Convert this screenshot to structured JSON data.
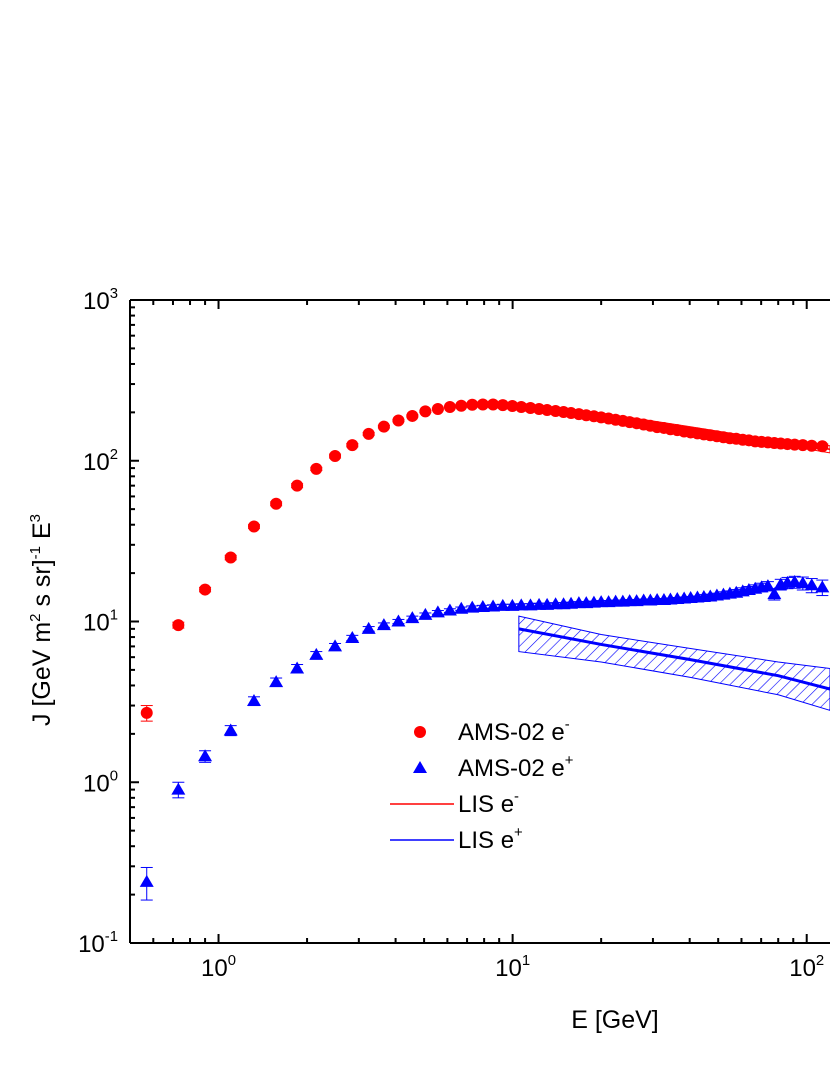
{
  "chart_data": {
    "type": "scatter",
    "xlabel": "E [GeV]",
    "ylabel": {
      "parts": [
        "J [GeV m",
        "2",
        " s sr]",
        "-1",
        " E",
        "3"
      ]
    },
    "x_scale": "log",
    "y_scale": "log",
    "xlim": [
      0.5,
      120
    ],
    "ylim": [
      0.1,
      1000
    ],
    "x_ticks": [
      {
        "value": 1,
        "base": "10",
        "exp": "0"
      },
      {
        "value": 10,
        "base": "10",
        "exp": "1"
      },
      {
        "value": 100,
        "base": "10",
        "exp": "2"
      }
    ],
    "y_ticks": [
      {
        "value": 0.1,
        "base": "10",
        "exp": "-1"
      },
      {
        "value": 1,
        "base": "10",
        "exp": "0"
      },
      {
        "value": 10,
        "base": "10",
        "exp": "1"
      },
      {
        "value": 100,
        "base": "10",
        "exp": "2"
      },
      {
        "value": 1000,
        "base": "10",
        "exp": "3"
      }
    ],
    "grid": false,
    "legend_position": "lower-center",
    "series": [
      {
        "name": "AMS-02 e",
        "name_sup": "-",
        "kind": "points",
        "marker": "circle",
        "color": "#ff0000",
        "x": [
          0.57,
          0.73,
          0.9,
          1.1,
          1.32,
          1.57,
          1.85,
          2.15,
          2.49,
          2.85,
          3.24,
          3.65,
          4.09,
          4.56,
          5.05,
          5.57,
          6.12,
          6.69,
          7.29,
          7.92,
          8.58,
          9.26,
          9.98,
          10.7,
          11.5,
          12.3,
          13.1,
          14.0,
          14.9,
          15.8,
          16.8,
          17.8,
          18.9,
          20.0,
          21.2,
          22.4,
          23.7,
          25.0,
          26.4,
          27.9,
          29.4,
          31.0,
          32.7,
          34.4,
          36.3,
          38.3,
          40.3,
          42.5,
          44.7,
          47.0,
          49.5,
          52.1,
          54.8,
          57.6,
          60.6,
          63.6,
          66.8,
          70.2,
          73.8,
          77.6,
          81.6,
          86.0,
          91.0,
          97.0,
          104,
          113
        ],
        "y": [
          2.7,
          9.5,
          15.8,
          25.0,
          39.0,
          54.0,
          70.0,
          89.0,
          107,
          125,
          147,
          163,
          178,
          190,
          203,
          210,
          216,
          220,
          223,
          224,
          224,
          222,
          219,
          216,
          213,
          210,
          207,
          204,
          201,
          198,
          195,
          192,
          189,
          186,
          183,
          180,
          177,
          174,
          171,
          168,
          165,
          162,
          160,
          157,
          155,
          152,
          150,
          148,
          146,
          144,
          142,
          140,
          138,
          137,
          135,
          134,
          132,
          131,
          130,
          129,
          128,
          127,
          126,
          125,
          124,
          123
        ],
        "err": [
          0.3,
          0.4,
          0.5,
          0.8,
          1.0,
          1.5,
          2,
          2,
          3,
          3,
          3,
          3,
          3,
          3,
          3,
          3,
          3,
          3,
          3,
          3,
          3,
          3,
          3,
          3,
          3,
          3,
          3,
          3,
          3,
          3,
          3,
          3,
          3,
          3,
          3,
          3,
          3,
          3,
          3,
          3,
          3,
          3,
          3,
          3,
          3,
          3,
          3,
          3,
          3,
          3,
          3,
          3,
          3,
          3,
          3,
          3,
          3,
          3,
          3,
          3,
          3,
          3,
          4,
          4,
          4,
          4
        ]
      },
      {
        "name": "AMS-02 e",
        "name_sup": "+",
        "kind": "points",
        "marker": "triangle",
        "color": "#0000ff",
        "x": [
          0.57,
          0.73,
          0.9,
          1.1,
          1.32,
          1.57,
          1.85,
          2.15,
          2.49,
          2.85,
          3.24,
          3.65,
          4.09,
          4.56,
          5.05,
          5.57,
          6.12,
          6.69,
          7.29,
          7.92,
          8.58,
          9.26,
          9.98,
          10.7,
          11.5,
          12.3,
          13.1,
          14.0,
          14.9,
          15.8,
          16.8,
          17.8,
          18.9,
          20.0,
          21.2,
          22.4,
          23.7,
          25.0,
          26.4,
          27.9,
          29.4,
          31.0,
          32.7,
          34.4,
          36.3,
          38.3,
          40.3,
          42.5,
          44.7,
          47.0,
          49.5,
          52.1,
          54.8,
          57.6,
          60.6,
          63.6,
          66.8,
          70.2,
          73.8,
          77.6,
          81.6,
          86.0,
          91.0,
          97.0,
          104,
          113
        ],
        "y": [
          0.24,
          0.9,
          1.45,
          2.1,
          3.2,
          4.2,
          5.1,
          6.2,
          7.0,
          7.9,
          9.0,
          9.5,
          10.0,
          10.5,
          11.0,
          11.4,
          11.7,
          12.0,
          12.2,
          12.3,
          12.4,
          12.5,
          12.5,
          12.6,
          12.6,
          12.7,
          12.7,
          12.8,
          12.8,
          12.9,
          13.0,
          13.0,
          13.1,
          13.2,
          13.2,
          13.3,
          13.3,
          13.4,
          13.4,
          13.5,
          13.5,
          13.6,
          13.6,
          13.7,
          13.8,
          13.9,
          14.0,
          14.1,
          14.2,
          14.3,
          14.5,
          14.7,
          14.9,
          15.1,
          15.4,
          15.7,
          16.0,
          16.3,
          16.6,
          14.8,
          17.0,
          17.4,
          17.6,
          17.3,
          16.8,
          16.3
        ],
        "err": [
          0.055,
          0.1,
          0.12,
          0.15,
          0.2,
          0.25,
          0.3,
          0.3,
          0.3,
          0.3,
          0.3,
          0.3,
          0.3,
          0.3,
          0.3,
          0.3,
          0.3,
          0.3,
          0.3,
          0.3,
          0.3,
          0.3,
          0.3,
          0.3,
          0.3,
          0.3,
          0.3,
          0.3,
          0.3,
          0.3,
          0.3,
          0.3,
          0.3,
          0.3,
          0.3,
          0.3,
          0.3,
          0.3,
          0.3,
          0.3,
          0.3,
          0.3,
          0.3,
          0.3,
          0.3,
          0.3,
          0.3,
          0.3,
          0.5,
          0.5,
          0.5,
          0.6,
          0.6,
          0.7,
          0.8,
          0.8,
          0.9,
          1.0,
          1.1,
          1.2,
          1.3,
          1.4,
          1.5,
          1.6,
          1.7,
          1.8
        ]
      },
      {
        "name": "LIS e",
        "name_sup": "-",
        "kind": "band",
        "color": "#ff0000",
        "x": [
          10.5,
          20,
          40,
          80,
          120
        ],
        "y": [
          217,
          193,
          160,
          130,
          118
        ],
        "y_low": [
          205,
          188,
          157,
          127,
          112
        ],
        "y_high": [
          229,
          198,
          163,
          133,
          124
        ]
      },
      {
        "name": "LIS e",
        "name_sup": "+",
        "kind": "band",
        "color": "#0000ff",
        "x": [
          10.5,
          20,
          40,
          80,
          120
        ],
        "y": [
          9.0,
          7.2,
          5.8,
          4.6,
          3.8
        ],
        "y_low": [
          6.5,
          5.6,
          4.5,
          3.5,
          2.8
        ],
        "y_high": [
          10.8,
          8.3,
          6.8,
          5.6,
          5.1
        ]
      }
    ]
  }
}
